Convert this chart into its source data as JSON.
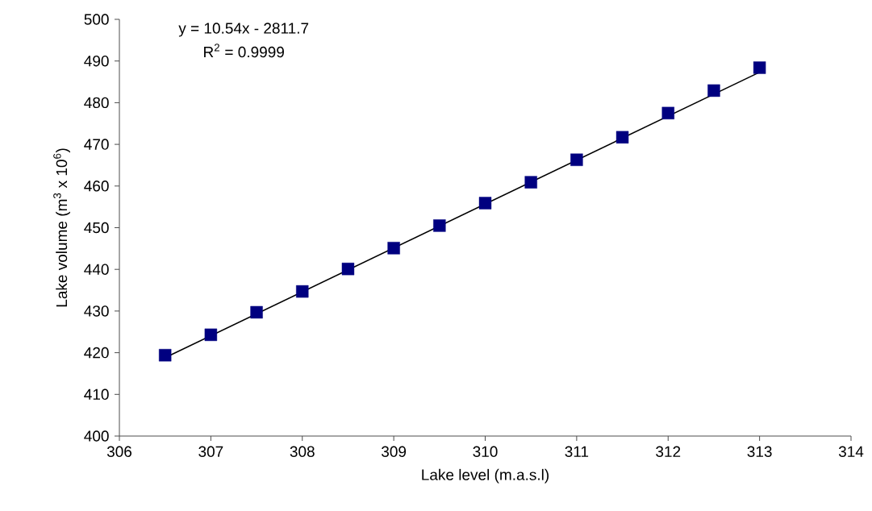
{
  "chart_data": {
    "type": "scatter",
    "xlabel": "Lake level (m.a.s.l)",
    "ylabel": "Lake volume (m$^{3}$ x 10$^{6}$)",
    "xlim": [
      306,
      314
    ],
    "xticks": [
      306,
      307,
      308,
      309,
      310,
      311,
      312,
      313,
      314
    ],
    "ylim": [
      400,
      500
    ],
    "yticks": [
      400,
      410,
      420,
      430,
      440,
      450,
      460,
      470,
      480,
      490,
      500
    ],
    "grid": false,
    "marker": "square",
    "annotations": [
      "y = 10.54x - 2811.7",
      "R$^{2}$ = 0.9999"
    ],
    "series": [
      {
        "color": "#000080",
        "x": [
          306.5,
          307,
          307.5,
          308,
          308.5,
          309,
          309.5,
          310,
          310.5,
          311,
          311.5,
          312,
          312.5,
          313
        ],
        "values": [
          419.4,
          424.3,
          429.7,
          434.7,
          440.1,
          445.1,
          450.5,
          455.9,
          460.9,
          466.3,
          471.7,
          477.5,
          482.9,
          488.4
        ]
      },
      {
        "type": "line",
        "color": "#000000",
        "marker": "none",
        "line_style": "solid",
        "x": [
          306.5,
          313
        ],
        "values": [
          418.8,
          487.3
        ]
      }
    ]
  }
}
